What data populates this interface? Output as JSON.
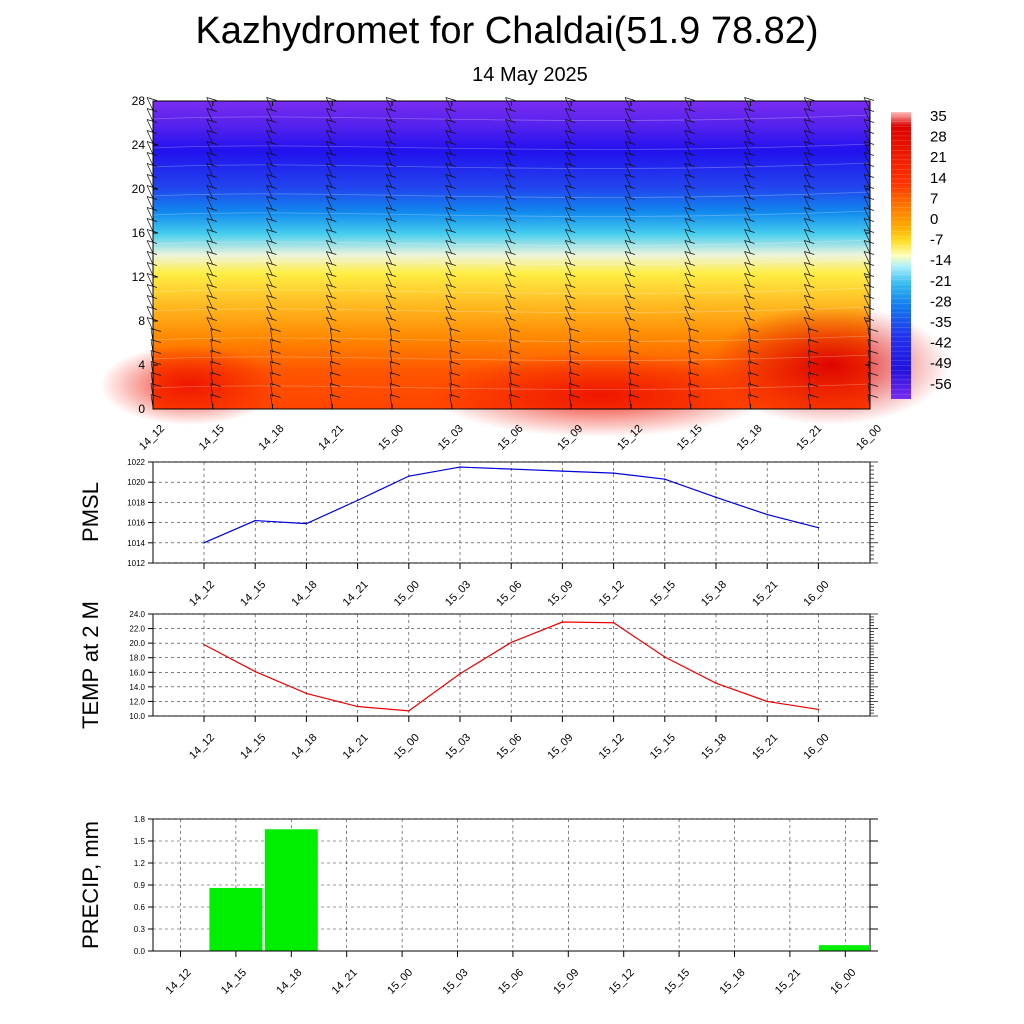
{
  "title": "Kazhydromet for Chaldai(51.9 78.82)",
  "subtitle": "14 May 2025",
  "colors": {
    "pmsl_line": "#0000dd",
    "temp_line": "#ee0000",
    "precip_bar": "#00ee00"
  },
  "chart_data": [
    {
      "type": "heatmap",
      "title": "",
      "xlabel": "",
      "ylabel": "",
      "x": [
        "14_12",
        "14_15",
        "14_18",
        "14_21",
        "15_00",
        "15_03",
        "15_06",
        "15_09",
        "15_12",
        "15_15",
        "15_18",
        "15_21",
        "16_00"
      ],
      "ylim": [
        0,
        28
      ],
      "yticks": [
        0,
        4,
        8,
        12,
        16,
        20,
        24,
        28
      ],
      "colorbar_ticks": [
        "35",
        "28",
        "21",
        "14",
        "7",
        "0",
        "-7",
        "-14",
        "-21",
        "-28",
        "-35",
        "-42",
        "-49",
        "-56"
      ],
      "colorbar_range": [
        -63,
        42
      ],
      "wind_barbs": true
    },
    {
      "type": "line",
      "ylabel": "PMSL",
      "x": [
        "14_12",
        "14_15",
        "14_18",
        "14_21",
        "15_00",
        "15_03",
        "15_06",
        "15_09",
        "15_12",
        "15_15",
        "15_18",
        "15_21",
        "16_00"
      ],
      "yticks": [
        "1012",
        "1014",
        "1016",
        "1018",
        "1020",
        "1022"
      ],
      "ylim": [
        1012,
        1022
      ],
      "series": [
        {
          "values": [
            1014.0,
            1016.2,
            1015.9,
            1018.2,
            1020.6,
            1021.5,
            1021.3,
            1021.1,
            1020.9,
            1020.3,
            1018.5,
            1016.8,
            1015.5
          ]
        }
      ]
    },
    {
      "type": "line",
      "ylabel": "TEMP at 2 M",
      "x": [
        "14_12",
        "14_15",
        "14_18",
        "14_21",
        "15_00",
        "15_03",
        "15_06",
        "15_09",
        "15_12",
        "15_15",
        "15_18",
        "15_21",
        "16_00"
      ],
      "yticks": [
        "10.0",
        "12.0",
        "14.0",
        "16.0",
        "18.0",
        "20.0",
        "22.0",
        "24.0"
      ],
      "ylim": [
        10,
        24
      ],
      "series": [
        {
          "values": [
            19.8,
            16.1,
            13.1,
            11.3,
            10.7,
            15.8,
            20.1,
            22.9,
            22.8,
            18.1,
            14.5,
            12.0,
            10.9
          ]
        }
      ]
    },
    {
      "type": "bar",
      "ylabel": "PRECIP, mm",
      "x": [
        "14_12",
        "14_15",
        "14_18",
        "14_21",
        "15_00",
        "15_03",
        "15_06",
        "15_09",
        "15_12",
        "15_15",
        "15_18",
        "15_21",
        "16_00"
      ],
      "yticks": [
        "0.0",
        "0.3",
        "0.6",
        "0.9",
        "1.2",
        "1.5",
        "1.8"
      ],
      "ylim": [
        0,
        1.8
      ],
      "values": [
        0,
        0.86,
        1.66,
        0,
        0,
        0,
        0,
        0,
        0,
        0,
        0,
        0,
        0.08
      ]
    }
  ]
}
